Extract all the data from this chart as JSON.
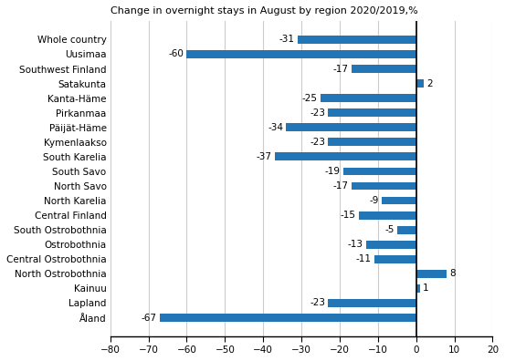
{
  "categories": [
    "Whole country",
    "Uusimaa",
    "Southwest Finland",
    "Satakunta",
    "Kanta-Häme",
    "Pirkanmaa",
    "Päijät-Häme",
    "Kymenlaakso",
    "South Karelia",
    "South Savo",
    "North Savo",
    "North Karelia",
    "Central Finland",
    "South Ostrobothnia",
    "Ostrobothnia",
    "Central Ostrobothnia",
    "North Ostrobothnia",
    "Kainuu",
    "Lapland",
    "Åland"
  ],
  "values": [
    -31,
    -60,
    -17,
    2,
    -25,
    -23,
    -34,
    -23,
    -37,
    -19,
    -17,
    -9,
    -15,
    -5,
    -13,
    -11,
    8,
    1,
    -23,
    -67
  ],
  "bar_color": "#2276b5",
  "title": "Change in overnight stays in August by region 2020/2019,%",
  "xlim": [
    -80,
    20
  ],
  "xticks": [
    -80,
    -70,
    -60,
    -50,
    -40,
    -30,
    -20,
    -10,
    0,
    10,
    20
  ],
  "label_fontsize": 7.5,
  "value_fontsize": 7.5,
  "title_fontsize": 8.0,
  "bar_height": 0.55
}
